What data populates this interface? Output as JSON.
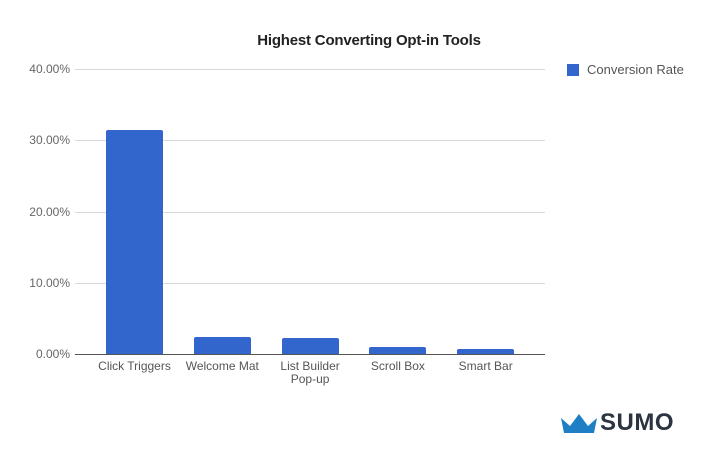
{
  "chart_data": {
    "type": "bar",
    "title": "Highest Converting Opt-in Tools",
    "xlabel": "",
    "ylabel": "",
    "categories": [
      "Click Triggers",
      "Welcome Mat",
      "List Builder Pop-up",
      "Scroll Box",
      "Smart Bar"
    ],
    "category_lines": [
      [
        "Click Triggers"
      ],
      [
        "Welcome Mat"
      ],
      [
        "List Builder",
        "Pop-up"
      ],
      [
        "Scroll Box"
      ],
      [
        "Smart Bar"
      ]
    ],
    "series": [
      {
        "name": "Conversion Rate",
        "color": "#3366cc",
        "values": [
          31.4,
          2.4,
          2.3,
          1.0,
          0.7
        ]
      }
    ],
    "ylim": [
      0,
      40
    ],
    "yticks": [
      0,
      10,
      20,
      30,
      40
    ],
    "ytick_labels": [
      "0.00%",
      "10.00%",
      "20.00%",
      "30.00%",
      "40.00%"
    ],
    "grid": true,
    "legend_position": "right"
  },
  "legend": {
    "label": "Conversion Rate",
    "color": "#3366cc"
  },
  "branding": {
    "logo_text": "SUMO",
    "crown_color": "#1e7fc4"
  }
}
